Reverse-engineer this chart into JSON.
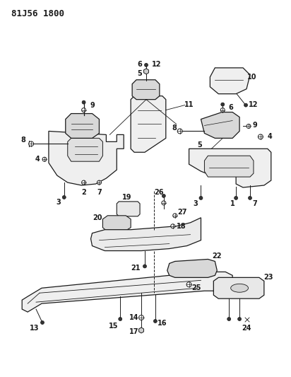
{
  "title": "81J56 1800",
  "bg_color": "#ffffff",
  "line_color": "#1a1a1a",
  "title_fontsize": 9,
  "label_fontsize": 7,
  "fig_width": 4.12,
  "fig_height": 5.33
}
